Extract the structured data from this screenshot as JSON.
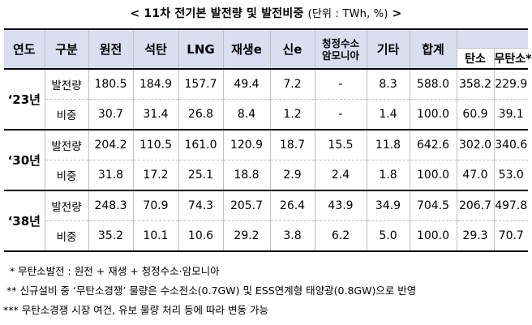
{
  "title": {
    "main": "< 11차 전기본 발전량 및 발전비중",
    "unit": "(단위 : TWh, %)",
    "end": ">"
  },
  "headers": {
    "year": "연도",
    "type": "구분",
    "cols": [
      "원전",
      "석탄",
      "LNG",
      "재생e",
      "신e",
      "청정수소\n암모니아",
      "기타",
      "합계"
    ],
    "group_top": "",
    "group_sub": [
      "탄소",
      "무탄소*"
    ]
  },
  "rows": [
    {
      "year": "‘23년",
      "entries": [
        {
          "label": "발전량",
          "values": [
            "180.5",
            "184.9",
            "157.7",
            "49.4",
            "7.2",
            "-",
            "8.3",
            "588.0",
            "358.2",
            "229.9"
          ]
        },
        {
          "label": "비중",
          "values": [
            "30.7",
            "31.4",
            "26.8",
            "8.4",
            "1.2",
            "-",
            "1.4",
            "100.0",
            "60.9",
            "39.1"
          ]
        }
      ]
    },
    {
      "year": "‘30년",
      "entries": [
        {
          "label": "발전량",
          "values": [
            "204.2",
            "110.5",
            "161.0",
            "120.9",
            "18.7",
            "15.5",
            "11.8",
            "642.6",
            "302.0",
            "340.6"
          ]
        },
        {
          "label": "비중",
          "values": [
            "31.8",
            "17.2",
            "25.1",
            "18.8",
            "2.9",
            "2.4",
            "1.8",
            "100.0",
            "47.0",
            "53.0"
          ]
        }
      ]
    },
    {
      "year": "‘38년",
      "entries": [
        {
          "label": "발전량",
          "values": [
            "248.3",
            "70.9",
            "74.3",
            "205.7",
            "26.4",
            "43.9",
            "34.9",
            "704.5",
            "206.7",
            "497.8"
          ]
        },
        {
          "label": "비중",
          "values": [
            "35.2",
            "10.1",
            "10.6",
            "29.2",
            "3.8",
            "6.2",
            "5.0",
            "100.0",
            "29.3",
            "70.7"
          ]
        }
      ]
    }
  ],
  "notes": [
    "  * 무탄소발전 : 원전 + 재생 + 청정수소·암모니아",
    " ** 신규설비 중 ‘무탄소경쟁’ 물량은 수소전소(0.7GW) 및 ESS연계형 태양광(0.8GW)으로 반영",
    "*** 무탄소경쟁 시장 여건, 유보 물량 처리 등에 따라 변동 가능"
  ],
  "colors": {
    "header_bg": "#d9dff0",
    "rule": "#000000",
    "grid": "#bfbfbf"
  }
}
